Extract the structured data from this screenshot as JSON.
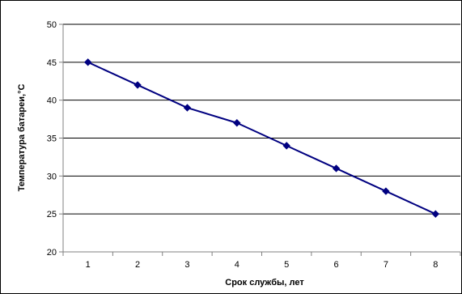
{
  "chart_data": {
    "type": "line",
    "title": "",
    "xlabel": "Срок службы, лет",
    "ylabel": "Температура батареи,°C",
    "x": [
      1,
      2,
      3,
      4,
      5,
      6,
      7,
      8
    ],
    "series": [
      {
        "values": [
          45,
          42,
          39,
          37,
          34,
          31,
          28,
          25
        ]
      }
    ],
    "ylim": [
      20,
      50
    ],
    "yticks": [
      20,
      25,
      30,
      35,
      40,
      45,
      50
    ],
    "xticks": [
      "1",
      "2",
      "3",
      "4",
      "5",
      "6",
      "7",
      "8"
    ],
    "grid": "horizontal",
    "marker": "diamond",
    "colors": {
      "line": "#000080",
      "marker": "#000080",
      "grid": "#000000",
      "axis": "#808080"
    }
  }
}
